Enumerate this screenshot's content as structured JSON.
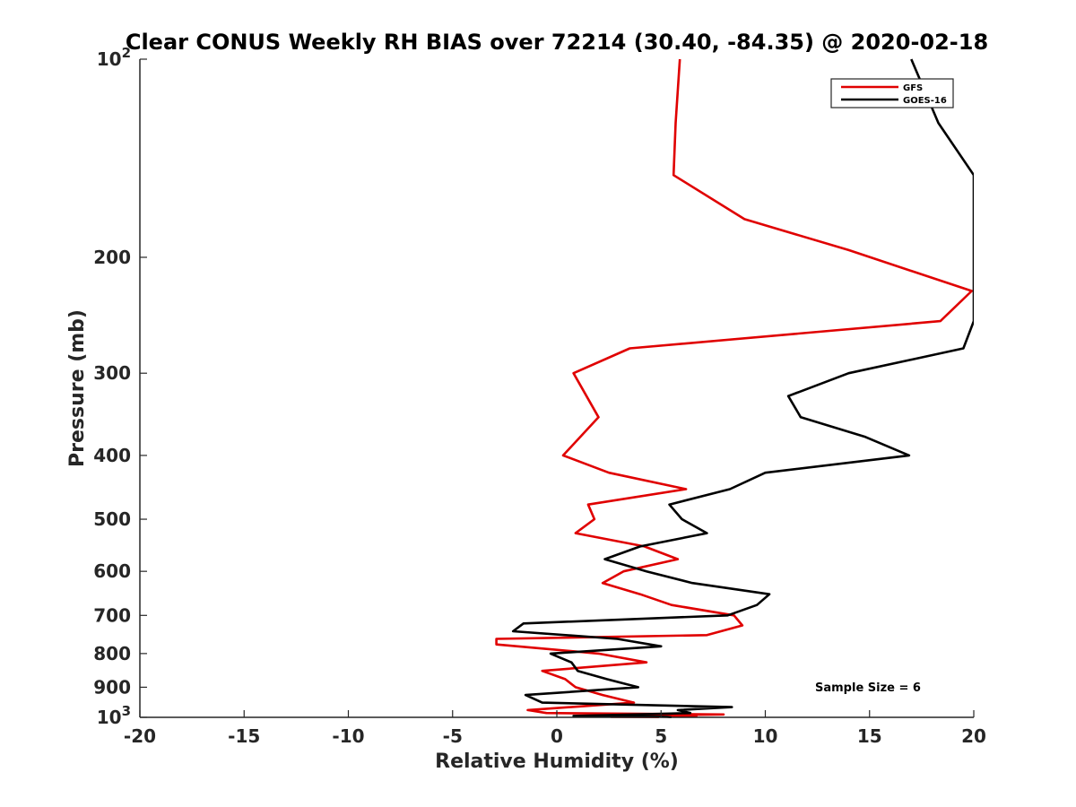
{
  "chart_data": {
    "type": "line",
    "title": "Clear CONUS Weekly RH BIAS over 72214 (30.40, -84.35) @ 2020-02-18",
    "xlabel": "Relative Humidity (%)",
    "ylabel": "Pressure (mb)",
    "xlim": [
      -20,
      20
    ],
    "ylim": [
      100,
      1000
    ],
    "yscale": "log",
    "y_reversed": true,
    "grid": false,
    "legend_position": "top-right",
    "x_ticks": [
      "-20",
      "-15",
      "-10",
      "-5",
      "0",
      "5",
      "10",
      "15",
      "20"
    ],
    "x_tick_values": [
      -20,
      -15,
      -10,
      -5,
      0,
      5,
      10,
      15,
      20
    ],
    "y_ticks": [
      {
        "value": 100,
        "base": "10",
        "exp": "2"
      },
      {
        "value": 200,
        "label": "200"
      },
      {
        "value": 300,
        "label": "300"
      },
      {
        "value": 400,
        "label": "400"
      },
      {
        "value": 500,
        "label": "500"
      },
      {
        "value": 600,
        "label": "600"
      },
      {
        "value": 700,
        "label": "700"
      },
      {
        "value": 800,
        "label": "800"
      },
      {
        "value": 900,
        "label": "900"
      },
      {
        "value": 1000,
        "base": "10",
        "exp": "3"
      }
    ],
    "series": [
      {
        "name": "GFS",
        "color": "#e00000",
        "points": [
          [
            5.9,
            100
          ],
          [
            5.7,
            125
          ],
          [
            5.6,
            150
          ],
          [
            9.0,
            175
          ],
          [
            14.0,
            195
          ],
          [
            19.9,
            225
          ],
          [
            18.4,
            250
          ],
          [
            3.5,
            275
          ],
          [
            0.8,
            300
          ],
          [
            2.0,
            350
          ],
          [
            0.3,
            400
          ],
          [
            2.5,
            425
          ],
          [
            6.2,
            450
          ],
          [
            1.5,
            475
          ],
          [
            1.8,
            500
          ],
          [
            0.9,
            525
          ],
          [
            4.2,
            550
          ],
          [
            5.8,
            575
          ],
          [
            3.2,
            600
          ],
          [
            2.2,
            625
          ],
          [
            4.0,
            650
          ],
          [
            5.5,
            675
          ],
          [
            8.5,
            700
          ],
          [
            8.9,
            725
          ],
          [
            7.2,
            750
          ],
          [
            -2.9,
            760
          ],
          [
            -2.9,
            775
          ],
          [
            2.0,
            800
          ],
          [
            4.3,
            825
          ],
          [
            -0.7,
            850
          ],
          [
            0.4,
            875
          ],
          [
            0.9,
            900
          ],
          [
            2.2,
            925
          ],
          [
            3.7,
            950
          ],
          [
            -1.4,
            975
          ],
          [
            -0.5,
            985
          ],
          [
            8.0,
            990
          ],
          [
            4.1,
            993
          ],
          [
            6.7,
            995
          ],
          [
            5.2,
            997
          ],
          [
            2.6,
            998
          ],
          [
            4.9,
            999
          ],
          [
            4.9,
            1000
          ]
        ]
      },
      {
        "name": "GOES-16",
        "color": "#000000",
        "points": [
          [
            17.0,
            100
          ],
          [
            18.3,
            125
          ],
          [
            20.0,
            150
          ],
          [
            20.0,
            250
          ],
          [
            19.5,
            275
          ],
          [
            14.0,
            300
          ],
          [
            11.1,
            325
          ],
          [
            11.7,
            350
          ],
          [
            14.8,
            375
          ],
          [
            16.9,
            400
          ],
          [
            10.0,
            425
          ],
          [
            8.3,
            450
          ],
          [
            5.4,
            475
          ],
          [
            6.0,
            500
          ],
          [
            7.2,
            525
          ],
          [
            4.0,
            550
          ],
          [
            2.3,
            575
          ],
          [
            4.3,
            600
          ],
          [
            6.5,
            625
          ],
          [
            10.2,
            650
          ],
          [
            9.6,
            675
          ],
          [
            8.2,
            700
          ],
          [
            -1.6,
            720
          ],
          [
            -2.1,
            740
          ],
          [
            2.9,
            760
          ],
          [
            5.0,
            780
          ],
          [
            -0.3,
            800
          ],
          [
            0.7,
            825
          ],
          [
            1.0,
            850
          ],
          [
            2.4,
            875
          ],
          [
            3.9,
            900
          ],
          [
            -1.5,
            925
          ],
          [
            -0.7,
            950
          ],
          [
            8.4,
            965
          ],
          [
            5.8,
            975
          ],
          [
            6.4,
            985
          ],
          [
            3.7,
            990
          ],
          [
            0.8,
            995
          ],
          [
            4.3,
            997
          ],
          [
            5.3,
            998
          ],
          [
            5.5,
            1000
          ]
        ]
      }
    ],
    "annotations": [
      {
        "text": "Sample Size = 6"
      }
    ]
  }
}
